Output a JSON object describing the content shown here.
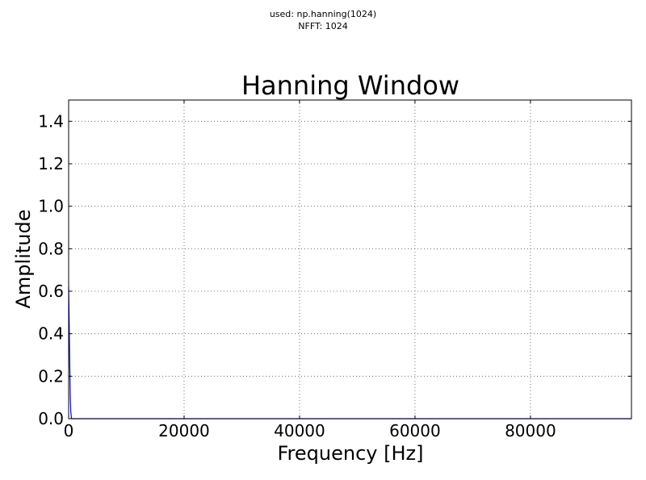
{
  "figure": {
    "suptitle_lines": [
      "used: np.hanning(1024)",
      "NFFT: 1024"
    ]
  },
  "chart_data": {
    "type": "line",
    "title": "Hanning Window",
    "xlabel": "Frequency [Hz]",
    "ylabel": "Amplitude",
    "xlim": [
      0,
      97500
    ],
    "ylim": [
      0,
      1.5
    ],
    "xticks": [
      0,
      20000,
      40000,
      60000,
      80000
    ],
    "xtick_labels": [
      "0",
      "20000",
      "40000",
      "60000",
      "80000"
    ],
    "yticks": [
      0.0,
      0.2,
      0.4,
      0.6,
      0.8,
      1.0,
      1.2,
      1.4
    ],
    "ytick_labels": [
      "0.0",
      "0.2",
      "0.4",
      "0.6",
      "0.8",
      "1.0",
      "1.2",
      "1.4"
    ],
    "grid": true,
    "line_color": "#0000ff",
    "series": [
      {
        "x": [
          0,
          95,
          190,
          285,
          380,
          475,
          570,
          1000,
          5000,
          20000,
          40000,
          60000,
          80000,
          97500
        ],
        "values": [
          0.62,
          0.45,
          0.26,
          0.1,
          0.03,
          0.005,
          0.0,
          0.0,
          0.0,
          0.0,
          0.0,
          0.0,
          0.0,
          0.0
        ]
      }
    ]
  }
}
